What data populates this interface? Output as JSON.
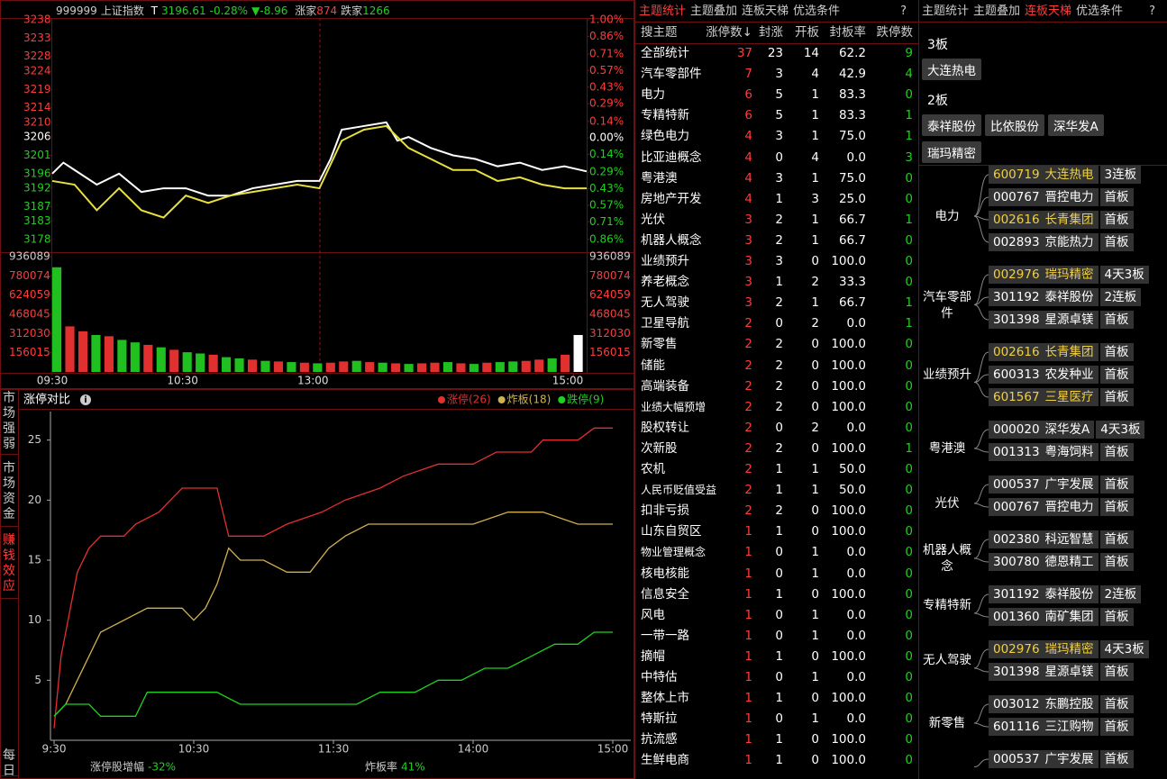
{
  "index_header": {
    "code": "999999",
    "name": "上证指数",
    "flag": "T",
    "price": "3196.61",
    "change_pct": "-0.28%",
    "change": "▼-8.96",
    "up_label": "涨家",
    "up_count": "874",
    "down_label": "跌家",
    "down_count": "1266"
  },
  "side_tabs": [
    "市场强弱",
    "市场资金",
    "赚钱效应",
    "每日"
  ],
  "chart_data": [
    {
      "type": "line",
      "xlim": [
        0,
        240
      ],
      "ylim": [
        3178,
        3238
      ],
      "yticks": [
        3238,
        3233,
        3228,
        3224,
        3219,
        3214,
        3210,
        3206,
        3201,
        3196,
        3192,
        3187,
        3183,
        3178
      ],
      "y2lim": [
        -0.86,
        1.0
      ],
      "y2ticks": [
        {
          "value": 1.0,
          "label": "1.00%"
        },
        {
          "value": 0.86,
          "label": "0.86%"
        },
        {
          "value": 0.71,
          "label": "0.71%"
        },
        {
          "value": 0.57,
          "label": "0.57%"
        },
        {
          "value": 0.43,
          "label": "0.43%"
        },
        {
          "value": 0.29,
          "label": "0.29%"
        },
        {
          "value": 0.14,
          "label": "0.14%"
        },
        {
          "value": 0,
          "label": "0.00%"
        },
        {
          "value": -0.14,
          "label": "0.14%"
        },
        {
          "value": -0.29,
          "label": "0.29%"
        },
        {
          "value": -0.43,
          "label": "0.43%"
        },
        {
          "value": -0.57,
          "label": "0.57%"
        },
        {
          "value": -0.71,
          "label": "0.71%"
        },
        {
          "value": -0.86,
          "label": "0.86%"
        }
      ],
      "series": [
        {
          "color": "#ffffff",
          "x": [
            0,
            5,
            10,
            20,
            30,
            40,
            50,
            60,
            70,
            80,
            90,
            100,
            110,
            120,
            125,
            130,
            140,
            150,
            155,
            160,
            170,
            180,
            190,
            200,
            210,
            220,
            230,
            240
          ],
          "values": [
            3196,
            3199,
            3197,
            3193,
            3196,
            3191,
            3192,
            3192,
            3190,
            3190,
            3192,
            3193,
            3194,
            3194,
            3200,
            3208,
            3209,
            3210,
            3205,
            3206,
            3203,
            3201,
            3200,
            3198,
            3199,
            3197,
            3198,
            3196.61
          ]
        },
        {
          "color": "#e8e040",
          "x": [
            0,
            10,
            20,
            30,
            40,
            50,
            60,
            70,
            80,
            90,
            100,
            110,
            120,
            130,
            140,
            150,
            160,
            170,
            180,
            190,
            200,
            210,
            220,
            230,
            240
          ],
          "values": [
            3194,
            3193,
            3186,
            3192,
            3186,
            3184,
            3190,
            3188,
            3190,
            3191,
            3192,
            3193,
            3192,
            3205,
            3208,
            3209,
            3203,
            3200,
            3197,
            3197,
            3194,
            3195,
            3193,
            3192,
            3192
          ]
        }
      ]
    },
    {
      "type": "bar",
      "xlim": [
        0,
        246
      ],
      "ylim": [
        0,
        936089
      ],
      "yticks": [
        936089,
        780074,
        624059,
        468045,
        312030,
        156015
      ],
      "xticks": [
        {
          "value": 0,
          "label": "09:30"
        },
        {
          "value": 60,
          "label": "10:30"
        },
        {
          "value": 120,
          "label": "13:00"
        },
        {
          "value": 240,
          "label": "15:00"
        }
      ],
      "x": [
        0,
        6,
        12,
        18,
        24,
        30,
        36,
        42,
        48,
        54,
        60,
        66,
        72,
        78,
        84,
        90,
        96,
        102,
        108,
        114,
        120,
        126,
        132,
        138,
        144,
        150,
        156,
        162,
        168,
        174,
        180,
        186,
        192,
        198,
        204,
        210,
        216,
        222,
        228,
        234,
        240
      ],
      "values": [
        850000,
        370000,
        330000,
        300000,
        290000,
        260000,
        240000,
        220000,
        200000,
        180000,
        160000,
        150000,
        140000,
        120000,
        110000,
        100000,
        90000,
        85000,
        80000,
        75000,
        70000,
        75000,
        85000,
        90000,
        80000,
        75000,
        70000,
        65000,
        70000,
        75000,
        80000,
        70000,
        65000,
        75000,
        80000,
        85000,
        90000,
        100000,
        110000,
        140000,
        300000
      ],
      "colors": [
        "#20c020",
        "#e03030",
        "#e03030",
        "#20c020",
        "#e03030",
        "#20c020",
        "#20c020",
        "#e03030",
        "#20c020",
        "#e03030",
        "#20c020",
        "#20c020",
        "#e03030",
        "#20c020",
        "#20c020",
        "#e03030",
        "#20c020",
        "#e03030",
        "#20c020",
        "#e03030",
        "#20c020",
        "#e03030",
        "#e03030",
        "#20c020",
        "#e03030",
        "#20c020",
        "#e03030",
        "#20c020",
        "#e03030",
        "#e03030",
        "#20c020",
        "#e03030",
        "#20c020",
        "#e03030",
        "#20c020",
        "#20c020",
        "#e03030",
        "#e03030",
        "#20c020",
        "#e03030",
        "#ffffff"
      ]
    },
    {
      "type": "line",
      "title": "涨停对比",
      "xlim": [
        0,
        240
      ],
      "ylim": [
        0,
        27
      ],
      "yticks": [
        5,
        10,
        15,
        20,
        25
      ],
      "xticks": [
        {
          "value": 0,
          "label": "9:30"
        },
        {
          "value": 60,
          "label": "10:30"
        },
        {
          "value": 120,
          "label": "11:30"
        },
        {
          "value": 180,
          "label": "14:00"
        },
        {
          "value": 240,
          "label": "15:00"
        }
      ],
      "series": [
        {
          "name": "涨停(26)",
          "color": "#e03030",
          "x": [
            0,
            3,
            6,
            10,
            15,
            20,
            30,
            35,
            45,
            50,
            55,
            70,
            75,
            90,
            100,
            115,
            125,
            140,
            150,
            165,
            180,
            190,
            205,
            210,
            225,
            232,
            240
          ],
          "values": [
            1,
            7,
            10,
            14,
            16,
            17,
            17,
            18,
            19,
            20,
            21,
            21,
            17,
            17,
            18,
            19,
            20,
            21,
            22,
            23,
            23,
            24,
            24,
            25,
            25,
            26,
            26
          ]
        },
        {
          "name": "炸板(18)",
          "color": "#d0b050",
          "x": [
            0,
            5,
            10,
            15,
            20,
            30,
            40,
            55,
            60,
            65,
            70,
            75,
            80,
            90,
            100,
            110,
            118,
            125,
            135,
            160,
            180,
            195,
            210,
            225,
            232,
            240
          ],
          "values": [
            2,
            3,
            5,
            7,
            9,
            10,
            11,
            11,
            10,
            11,
            13,
            16,
            15,
            15,
            14,
            14,
            16,
            17,
            18,
            18,
            18,
            19,
            19,
            18,
            18,
            18
          ]
        },
        {
          "name": "跌停(9)",
          "color": "#20d020",
          "x": [
            0,
            5,
            15,
            20,
            35,
            40,
            70,
            80,
            110,
            130,
            140,
            155,
            165,
            175,
            185,
            195,
            205,
            215,
            225,
            232,
            240
          ],
          "values": [
            2,
            3,
            3,
            2,
            2,
            4,
            4,
            3,
            3,
            3,
            4,
            4,
            5,
            5,
            6,
            6,
            7,
            8,
            8,
            9,
            9
          ]
        }
      ],
      "footer": [
        {
          "label": "涨停股增幅",
          "value": "-32%"
        },
        {
          "label": "炸板率",
          "value": "41%"
        }
      ]
    }
  ],
  "theme_table": {
    "tabs": [
      "主题统计",
      "主题叠加",
      "连板天梯",
      "优选条件",
      "?"
    ],
    "headers": [
      "搜主题",
      "涨停数↓",
      "封涨",
      "开板",
      "封板率",
      "跌停数"
    ],
    "rows": [
      [
        "全部统计",
        "37",
        "23",
        "14",
        "62.2",
        "9"
      ],
      [
        "汽车零部件",
        "7",
        "3",
        "4",
        "42.9",
        "4"
      ],
      [
        "电力",
        "6",
        "5",
        "1",
        "83.3",
        "0"
      ],
      [
        "专精特新",
        "6",
        "5",
        "1",
        "83.3",
        "1"
      ],
      [
        "绿色电力",
        "4",
        "3",
        "1",
        "75.0",
        "1"
      ],
      [
        "比亚迪概念",
        "4",
        "0",
        "4",
        "0.0",
        "3"
      ],
      [
        "粤港澳",
        "4",
        "3",
        "1",
        "75.0",
        "0"
      ],
      [
        "房地产开发",
        "4",
        "1",
        "3",
        "25.0",
        "0"
      ],
      [
        "光伏",
        "3",
        "2",
        "1",
        "66.7",
        "1"
      ],
      [
        "机器人概念",
        "3",
        "2",
        "1",
        "66.7",
        "0"
      ],
      [
        "业绩预升",
        "3",
        "3",
        "0",
        "100.0",
        "0"
      ],
      [
        "养老概念",
        "3",
        "1",
        "2",
        "33.3",
        "0"
      ],
      [
        "无人驾驶",
        "3",
        "2",
        "1",
        "66.7",
        "1"
      ],
      [
        "卫星导航",
        "2",
        "0",
        "2",
        "0.0",
        "1"
      ],
      [
        "新零售",
        "2",
        "2",
        "0",
        "100.0",
        "0"
      ],
      [
        "储能",
        "2",
        "2",
        "0",
        "100.0",
        "0"
      ],
      [
        "高端装备",
        "2",
        "2",
        "0",
        "100.0",
        "0"
      ],
      [
        "业绩大幅预增",
        "2",
        "2",
        "0",
        "100.0",
        "0"
      ],
      [
        "股权转让",
        "2",
        "0",
        "2",
        "0.0",
        "0"
      ],
      [
        "次新股",
        "2",
        "2",
        "0",
        "100.0",
        "1"
      ],
      [
        "农机",
        "2",
        "1",
        "1",
        "50.0",
        "0"
      ],
      [
        "人民币贬值受益",
        "2",
        "1",
        "1",
        "50.0",
        "0"
      ],
      [
        "扣非亏损",
        "2",
        "2",
        "0",
        "100.0",
        "0"
      ],
      [
        "山东自贸区",
        "1",
        "1",
        "0",
        "100.0",
        "0"
      ],
      [
        "物业管理概念",
        "1",
        "0",
        "1",
        "0.0",
        "0"
      ],
      [
        "核电核能",
        "1",
        "0",
        "1",
        "0.0",
        "0"
      ],
      [
        "信息安全",
        "1",
        "1",
        "0",
        "100.0",
        "0"
      ],
      [
        "风电",
        "1",
        "0",
        "1",
        "0.0",
        "0"
      ],
      [
        "一带一路",
        "1",
        "0",
        "1",
        "0.0",
        "0"
      ],
      [
        "摘帽",
        "1",
        "1",
        "0",
        "100.0",
        "0"
      ],
      [
        "中特估",
        "1",
        "0",
        "1",
        "0.0",
        "0"
      ],
      [
        "整体上市",
        "1",
        "1",
        "0",
        "100.0",
        "0"
      ],
      [
        "特斯拉",
        "1",
        "0",
        "1",
        "0.0",
        "0"
      ],
      [
        "抗流感",
        "1",
        "1",
        "0",
        "100.0",
        "0"
      ],
      [
        "生鲜电商",
        "1",
        "1",
        "0",
        "100.0",
        "0"
      ]
    ]
  },
  "ladder": {
    "tabs": [
      "主题统计",
      "主题叠加",
      "连板天梯",
      "优选条件",
      "?"
    ],
    "levels": [
      {
        "label": "3板",
        "stocks": [
          "大连热电"
        ]
      },
      {
        "label": "2板",
        "stocks": [
          "泰祥股份",
          "比依股份",
          "深华发A",
          "瑞玛精密"
        ]
      }
    ],
    "groups": [
      {
        "name": "电力",
        "stocks": [
          {
            "code": "600719",
            "name": "大连热电",
            "board": "3连板",
            "highlight": true
          },
          {
            "code": "000767",
            "name": "晋控电力",
            "board": "首板",
            "highlight": false
          },
          {
            "code": "002616",
            "name": "长青集团",
            "board": "首板",
            "highlight": true
          },
          {
            "code": "002893",
            "name": "京能热力",
            "board": "首板",
            "highlight": false
          }
        ]
      },
      {
        "name": "汽车零部件",
        "stocks": [
          {
            "code": "002976",
            "name": "瑞玛精密",
            "board": "4天3板",
            "highlight": true
          },
          {
            "code": "301192",
            "name": "泰祥股份",
            "board": "2连板",
            "highlight": false
          },
          {
            "code": "301398",
            "name": "星源卓镁",
            "board": "首板",
            "highlight": false
          }
        ]
      },
      {
        "name": "业绩预升",
        "stocks": [
          {
            "code": "002616",
            "name": "长青集团",
            "board": "首板",
            "highlight": true
          },
          {
            "code": "600313",
            "name": "农发种业",
            "board": "首板",
            "highlight": false
          },
          {
            "code": "601567",
            "name": "三星医疗",
            "board": "首板",
            "highlight": true
          }
        ]
      },
      {
        "name": "粤港澳",
        "stocks": [
          {
            "code": "000020",
            "name": "深华发A",
            "board": "4天3板",
            "highlight": false
          },
          {
            "code": "001313",
            "name": "粤海饲料",
            "board": "首板",
            "highlight": false
          }
        ]
      },
      {
        "name": "光伏",
        "stocks": [
          {
            "code": "000537",
            "name": "广宇发展",
            "board": "首板",
            "highlight": false
          },
          {
            "code": "000767",
            "name": "晋控电力",
            "board": "首板",
            "highlight": false
          }
        ]
      },
      {
        "name": "机器人概念",
        "stocks": [
          {
            "code": "002380",
            "name": "科远智慧",
            "board": "首板",
            "highlight": false
          },
          {
            "code": "300780",
            "name": "德恩精工",
            "board": "首板",
            "highlight": false
          }
        ]
      },
      {
        "name": "专精特新",
        "stocks": [
          {
            "code": "301192",
            "name": "泰祥股份",
            "board": "2连板",
            "highlight": false
          },
          {
            "code": "001360",
            "name": "南矿集团",
            "board": "首板",
            "highlight": false
          }
        ]
      },
      {
        "name": "无人驾驶",
        "stocks": [
          {
            "code": "002976",
            "name": "瑞玛精密",
            "board": "4天3板",
            "highlight": true
          },
          {
            "code": "301398",
            "name": "星源卓镁",
            "board": "首板",
            "highlight": false
          }
        ]
      },
      {
        "name": "新零售",
        "stocks": [
          {
            "code": "003012",
            "name": "东鹏控股",
            "board": "首板",
            "highlight": false
          },
          {
            "code": "601116",
            "name": "三江购物",
            "board": "首板",
            "highlight": false
          }
        ]
      },
      {
        "stocks": [
          {
            "code": "000537",
            "name": "广宇发展",
            "board": "首板",
            "highlight": false
          }
        ]
      }
    ]
  }
}
